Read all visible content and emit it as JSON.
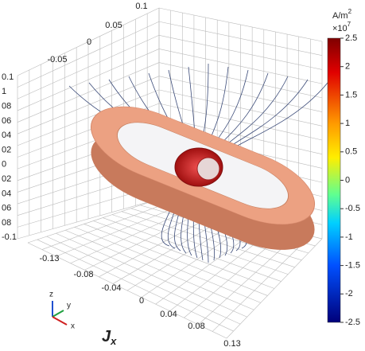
{
  "plot": {
    "title": "J",
    "title_sub": "x",
    "top_axis": [
      "0.1",
      "0.05",
      "0",
      "-0.05"
    ],
    "left_axis": [
      "0.1",
      "1",
      "08",
      "06",
      "04",
      "02",
      "0",
      "02",
      "04",
      "06",
      "08",
      "-0.1"
    ],
    "bottom_axis": [
      "-0.13",
      "-0.08",
      "-0.04",
      "0",
      "0.04",
      "0.08",
      "0.13"
    ],
    "colorbar": {
      "unit": "A/m",
      "unit_power": "2",
      "scale": "×10",
      "scale_power": "7",
      "ticks": [
        "2.5",
        "2",
        "1.5",
        "1",
        "0.5",
        "0",
        "-0.5",
        "-1",
        "-1.5",
        "-2",
        "-2.5"
      ]
    },
    "triad": [
      "z",
      "y",
      "x"
    ]
  }
}
